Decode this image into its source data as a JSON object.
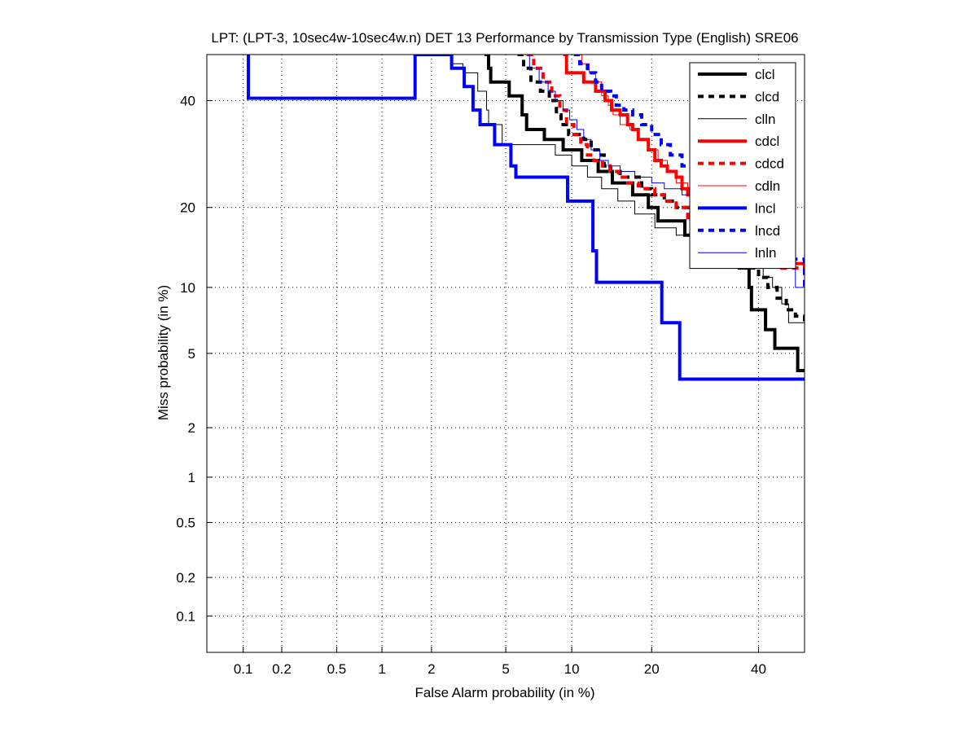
{
  "chart_data": {
    "type": "line",
    "title": "LPT: (LPT-3, 10sec4w-10sec4w.n) DET 13 Performance by Transmission Type (English) SRE06",
    "xlabel": "False Alarm probability (in %)",
    "ylabel": "Miss probability (in %)",
    "scale": "normal-deviate (DET)",
    "xlim": [
      0.05,
      50
    ],
    "ylim": [
      0.05,
      50
    ],
    "grid": true,
    "legend_position": "top-right",
    "xticks": [
      0.1,
      0.2,
      0.5,
      1,
      2,
      5,
      10,
      20,
      40
    ],
    "xtick_labels": [
      "0.1",
      "0.2",
      "0.5",
      "1",
      "2",
      "5",
      "10",
      "20",
      "40"
    ],
    "yticks": [
      0.1,
      0.2,
      0.5,
      1,
      2,
      5,
      10,
      20,
      40
    ],
    "ytick_labels": [
      "0.1",
      "0.2",
      "0.5",
      "1",
      "2",
      "5",
      "10",
      "20",
      "40"
    ],
    "series": [
      {
        "name": "clcl",
        "color": "#000000",
        "style": "solid",
        "weight": "thick",
        "points": [
          [
            3.9,
            50
          ],
          [
            4.1,
            47
          ],
          [
            4.2,
            44
          ],
          [
            4.9,
            44
          ],
          [
            5.2,
            41
          ],
          [
            5.7,
            41
          ],
          [
            6.0,
            37
          ],
          [
            6.3,
            34
          ],
          [
            7.2,
            34
          ],
          [
            7.6,
            32
          ],
          [
            8.8,
            32
          ],
          [
            9.2,
            30
          ],
          [
            10.5,
            30
          ],
          [
            11.0,
            28
          ],
          [
            12.3,
            28
          ],
          [
            12.8,
            26
          ],
          [
            13.5,
            26
          ],
          [
            14.5,
            24
          ],
          [
            16.0,
            24
          ],
          [
            17.2,
            22
          ],
          [
            18.5,
            22
          ],
          [
            19.5,
            20
          ],
          [
            20.2,
            20
          ],
          [
            21.0,
            18
          ],
          [
            24.5,
            18
          ],
          [
            25.5,
            16
          ],
          [
            28.5,
            16
          ],
          [
            30,
            14
          ],
          [
            33,
            14
          ],
          [
            36,
            12
          ],
          [
            37.5,
            12
          ],
          [
            38,
            10
          ],
          [
            38.5,
            8
          ],
          [
            40.5,
            8
          ],
          [
            41.5,
            6.5
          ],
          [
            43,
            6.5
          ],
          [
            43.5,
            5.3
          ],
          [
            48,
            5.3
          ],
          [
            48.5,
            4.1
          ],
          [
            50,
            4.1
          ]
        ]
      },
      {
        "name": "clcd",
        "color": "#000000",
        "style": "dashed",
        "weight": "thick",
        "points": [
          [
            5.7,
            50
          ],
          [
            6.1,
            47
          ],
          [
            6.6,
            44
          ],
          [
            7.3,
            42
          ],
          [
            8.0,
            40
          ],
          [
            8.6,
            37
          ],
          [
            9.0,
            35
          ],
          [
            9.7,
            33
          ],
          [
            10.2,
            33
          ],
          [
            11.2,
            32
          ],
          [
            12.0,
            30
          ],
          [
            12.8,
            29
          ],
          [
            13.5,
            27
          ],
          [
            14.3,
            26
          ],
          [
            15.5,
            25
          ],
          [
            17.0,
            25
          ],
          [
            18.5,
            23
          ],
          [
            20.0,
            22
          ],
          [
            22,
            21
          ],
          [
            24,
            20
          ],
          [
            27,
            19
          ],
          [
            30,
            17
          ],
          [
            33,
            15
          ],
          [
            36,
            13
          ],
          [
            38,
            12
          ],
          [
            40,
            11
          ],
          [
            42,
            10
          ],
          [
            44,
            9
          ],
          [
            46,
            8
          ],
          [
            48,
            7.5
          ],
          [
            50,
            7
          ]
        ]
      },
      {
        "name": "clln",
        "color": "#000000",
        "style": "solid",
        "weight": "thin",
        "points": [
          [
            2.55,
            50
          ],
          [
            2.6,
            48
          ],
          [
            2.9,
            48
          ],
          [
            3.0,
            46
          ],
          [
            3.5,
            46
          ],
          [
            3.6,
            42
          ],
          [
            3.8,
            42
          ],
          [
            4.0,
            38
          ],
          [
            4.1,
            35
          ],
          [
            4.7,
            35
          ],
          [
            4.8,
            31
          ],
          [
            8.2,
            31
          ],
          [
            8.5,
            29
          ],
          [
            9.5,
            29
          ],
          [
            10.0,
            27
          ],
          [
            11.2,
            27
          ],
          [
            11.6,
            25
          ],
          [
            12.5,
            25
          ],
          [
            13.2,
            23
          ],
          [
            14.5,
            23
          ],
          [
            15.2,
            21
          ],
          [
            17.0,
            21
          ],
          [
            17.5,
            19
          ],
          [
            19.5,
            19
          ],
          [
            20.5,
            17
          ],
          [
            22.5,
            17
          ],
          [
            24,
            16
          ],
          [
            26,
            16
          ],
          [
            28,
            15
          ],
          [
            31,
            15
          ],
          [
            33,
            14
          ],
          [
            36,
            13
          ],
          [
            39,
            12
          ],
          [
            41,
            11
          ],
          [
            43,
            10
          ],
          [
            45,
            8.5
          ],
          [
            46.5,
            7
          ],
          [
            50,
            7
          ]
        ]
      },
      {
        "name": "cdcl",
        "color": "#ff0000",
        "style": "solid",
        "weight": "thick",
        "points": [
          [
            9.2,
            50
          ],
          [
            9.5,
            46
          ],
          [
            10.8,
            46
          ],
          [
            11.2,
            44
          ],
          [
            12.5,
            42
          ],
          [
            13.6,
            40
          ],
          [
            14.4,
            38
          ],
          [
            15.5,
            37
          ],
          [
            16.5,
            35
          ],
          [
            17.2,
            34
          ],
          [
            18.0,
            32
          ],
          [
            19.5,
            30
          ],
          [
            20.5,
            28
          ],
          [
            21.5,
            27
          ],
          [
            22.5,
            26
          ],
          [
            24,
            25
          ],
          [
            25,
            23
          ],
          [
            26,
            22
          ],
          [
            27,
            20
          ],
          [
            28,
            19
          ],
          [
            29,
            18
          ],
          [
            30,
            17
          ],
          [
            32,
            16
          ],
          [
            34,
            15
          ],
          [
            36,
            14
          ],
          [
            40,
            13
          ],
          [
            45,
            12.5
          ],
          [
            50,
            12
          ]
        ]
      },
      {
        "name": "cdcd",
        "color": "#ff0000",
        "style": "dashed",
        "weight": "thick",
        "points": [
          [
            6.3,
            50
          ],
          [
            6.8,
            47
          ],
          [
            7.5,
            44
          ],
          [
            8.2,
            41
          ],
          [
            8.9,
            38
          ],
          [
            9.5,
            35
          ],
          [
            10.2,
            33
          ],
          [
            10.9,
            31
          ],
          [
            11.6,
            29
          ],
          [
            12.3,
            28
          ],
          [
            13.3,
            27
          ],
          [
            14.2,
            26
          ],
          [
            15.3,
            25
          ],
          [
            16.5,
            24
          ],
          [
            18,
            23.5
          ],
          [
            19,
            23
          ],
          [
            20.5,
            22
          ],
          [
            22,
            21
          ],
          [
            24,
            20
          ],
          [
            26,
            18
          ],
          [
            28,
            17
          ],
          [
            30,
            16
          ],
          [
            33,
            15
          ],
          [
            36,
            14
          ],
          [
            40,
            13
          ],
          [
            45,
            12
          ],
          [
            50,
            11.5
          ]
        ]
      },
      {
        "name": "cdln",
        "color": "#ff0000",
        "style": "solid",
        "weight": "thin",
        "points": [
          [
            10.2,
            50
          ],
          [
            11.0,
            48
          ],
          [
            11.8,
            46
          ],
          [
            12.5,
            44
          ],
          [
            13.2,
            41
          ],
          [
            14.0,
            39
          ],
          [
            14.6,
            37
          ],
          [
            15.5,
            35
          ],
          [
            16.8,
            34
          ],
          [
            18.0,
            32
          ],
          [
            19.5,
            30
          ],
          [
            21,
            28
          ],
          [
            22.5,
            26
          ],
          [
            24,
            24
          ],
          [
            26,
            22
          ],
          [
            28,
            20
          ],
          [
            30,
            18
          ],
          [
            33,
            16
          ],
          [
            36,
            14.5
          ],
          [
            40,
            13.5
          ],
          [
            45,
            12.5
          ],
          [
            50,
            12
          ]
        ]
      },
      {
        "name": "lncl",
        "color": "#0000ff",
        "style": "solid",
        "weight": "thick",
        "points": [
          [
            0.11,
            50
          ],
          [
            0.11,
            40.5
          ],
          [
            1.6,
            40.5
          ],
          [
            1.6,
            50
          ],
          [
            2.5,
            50
          ],
          [
            2.6,
            47
          ],
          [
            2.9,
            47
          ],
          [
            3.05,
            43
          ],
          [
            3.3,
            43
          ],
          [
            3.4,
            38
          ],
          [
            3.65,
            38
          ],
          [
            3.7,
            35
          ],
          [
            4.3,
            35
          ],
          [
            4.4,
            31
          ],
          [
            5.2,
            31
          ],
          [
            5.3,
            27
          ],
          [
            5.5,
            27
          ],
          [
            5.6,
            25
          ],
          [
            9.5,
            25
          ],
          [
            9.6,
            21
          ],
          [
            12.1,
            21
          ],
          [
            12.2,
            14
          ],
          [
            12.5,
            14
          ],
          [
            12.6,
            10.5
          ],
          [
            21.5,
            10.5
          ],
          [
            21.6,
            7
          ],
          [
            24.5,
            7
          ],
          [
            24.6,
            3.7
          ],
          [
            50,
            3.7
          ]
        ]
      },
      {
        "name": "lncd",
        "color": "#0000ff",
        "style": "dashed",
        "weight": "thick",
        "points": [
          [
            10.2,
            50
          ],
          [
            10.8,
            48
          ],
          [
            11.6,
            46
          ],
          [
            12.5,
            44
          ],
          [
            13.2,
            42
          ],
          [
            14.3,
            41
          ],
          [
            15.0,
            39
          ],
          [
            16.0,
            38
          ],
          [
            17.2,
            37
          ],
          [
            18.5,
            35
          ],
          [
            20,
            33
          ],
          [
            21.5,
            31
          ],
          [
            23,
            29
          ],
          [
            25,
            27
          ],
          [
            27,
            26
          ],
          [
            29,
            25
          ],
          [
            31,
            24
          ],
          [
            33,
            23
          ],
          [
            36,
            22
          ],
          [
            40,
            18
          ],
          [
            44,
            16
          ],
          [
            47,
            13
          ],
          [
            50,
            10
          ]
        ]
      },
      {
        "name": "lnln",
        "color": "#0000ff",
        "style": "solid",
        "weight": "thin",
        "points": [
          [
            6.0,
            50
          ],
          [
            6.5,
            47
          ],
          [
            7.2,
            44
          ],
          [
            7.9,
            42
          ],
          [
            8.5,
            40
          ],
          [
            9.2,
            38
          ],
          [
            9.8,
            36
          ],
          [
            10.5,
            34
          ],
          [
            11.2,
            32
          ],
          [
            12.0,
            30
          ],
          [
            13.0,
            28
          ],
          [
            14.0,
            27
          ],
          [
            15.5,
            26
          ],
          [
            17.5,
            25
          ],
          [
            20,
            24
          ],
          [
            22,
            23
          ],
          [
            25,
            22
          ],
          [
            28,
            21
          ],
          [
            30,
            19
          ],
          [
            33,
            17
          ],
          [
            36,
            15
          ],
          [
            40,
            13
          ],
          [
            44,
            12
          ],
          [
            48,
            10
          ],
          [
            50,
            8.5
          ]
        ]
      }
    ]
  }
}
